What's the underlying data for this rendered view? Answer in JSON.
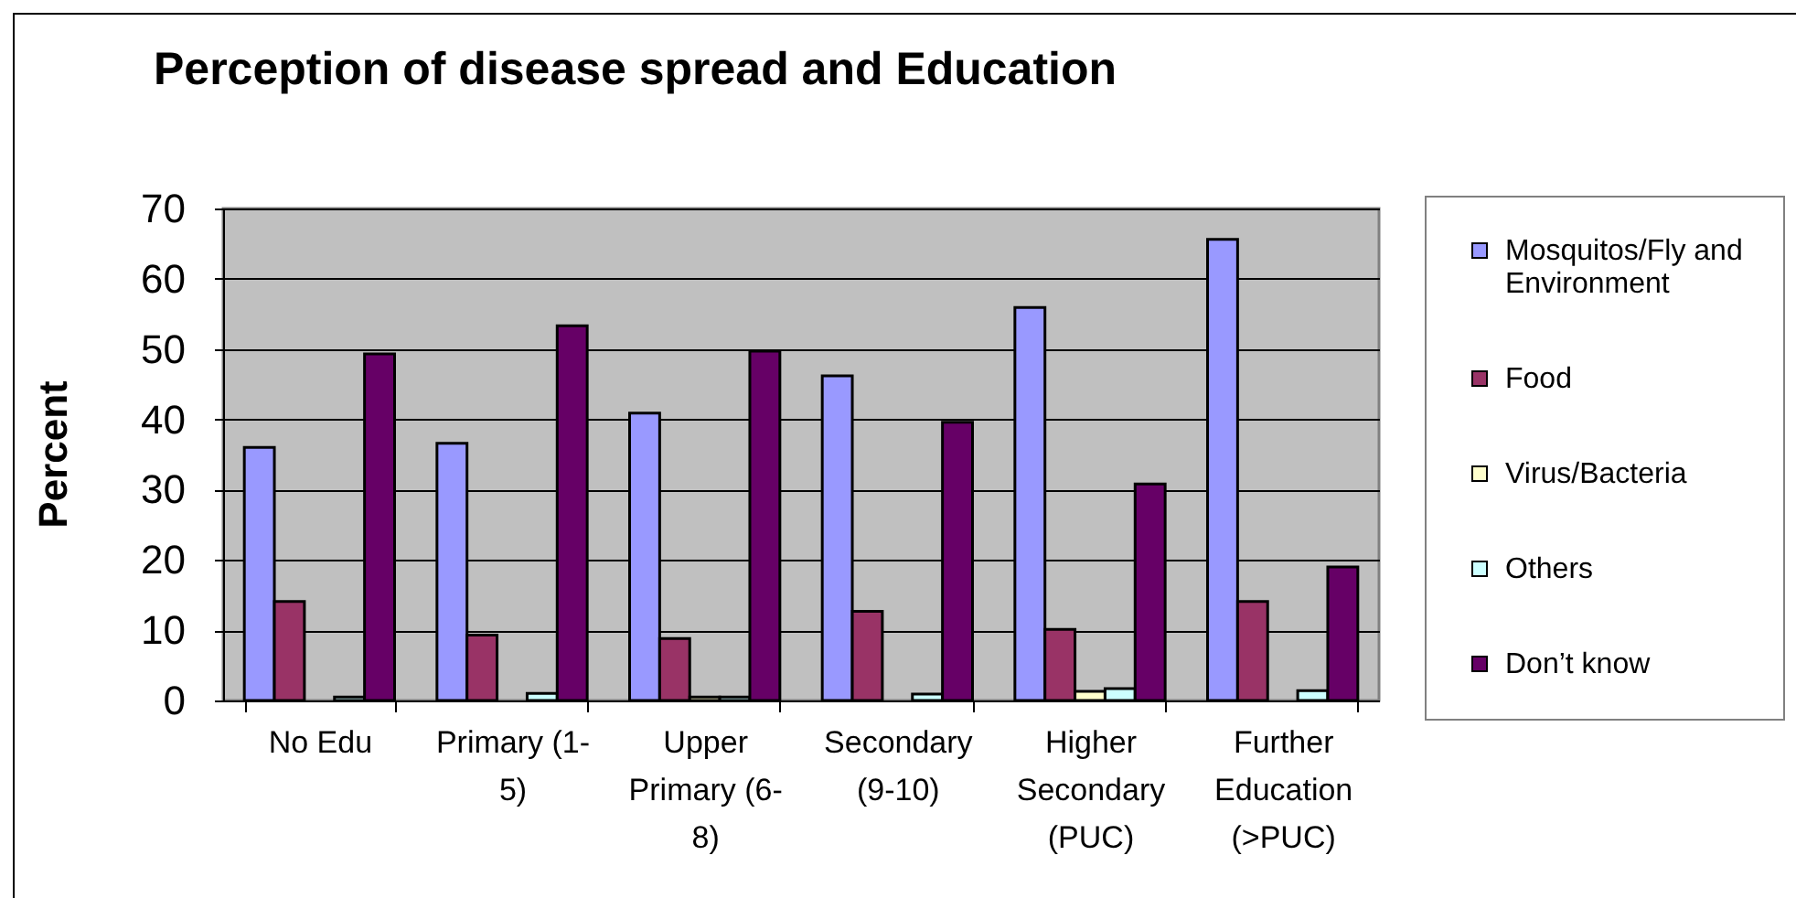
{
  "chart_data": {
    "type": "bar",
    "title": "Perception of disease spread and Education",
    "ylabel": "Percent",
    "categories": [
      "No Edu",
      "Primary (1-5)",
      "Upper Primary (6-8)",
      "Secondary (9-10)",
      "Higher Secondary (PUC)",
      "Further Education (>PUC)"
    ],
    "series": [
      {
        "name": "Mosquitos/Fly and Environment",
        "color": "#9999ff",
        "values": [
          36.0,
          36.6,
          40.9,
          46.2,
          55.9,
          65.6
        ]
      },
      {
        "name": "Food",
        "color": "#993366",
        "values": [
          14.1,
          9.3,
          8.8,
          12.7,
          10.1,
          14.1
        ]
      },
      {
        "name": "Virus/Bacteria",
        "color": "#ffffcc",
        "values": [
          null,
          null,
          0.5,
          null,
          1.3,
          null
        ]
      },
      {
        "name": "Others",
        "color": "#ccffff",
        "values": [
          0.5,
          1.0,
          0.5,
          0.9,
          1.7,
          1.4
        ]
      },
      {
        "name": "Don’t know",
        "color": "#660066",
        "values": [
          49.3,
          53.3,
          49.7,
          39.6,
          30.8,
          19.0
        ]
      }
    ],
    "ylim": [
      0,
      70
    ],
    "yticks": [
      0,
      10,
      20,
      30,
      40,
      50,
      60,
      70
    ],
    "grid": "y",
    "legend": "right"
  }
}
